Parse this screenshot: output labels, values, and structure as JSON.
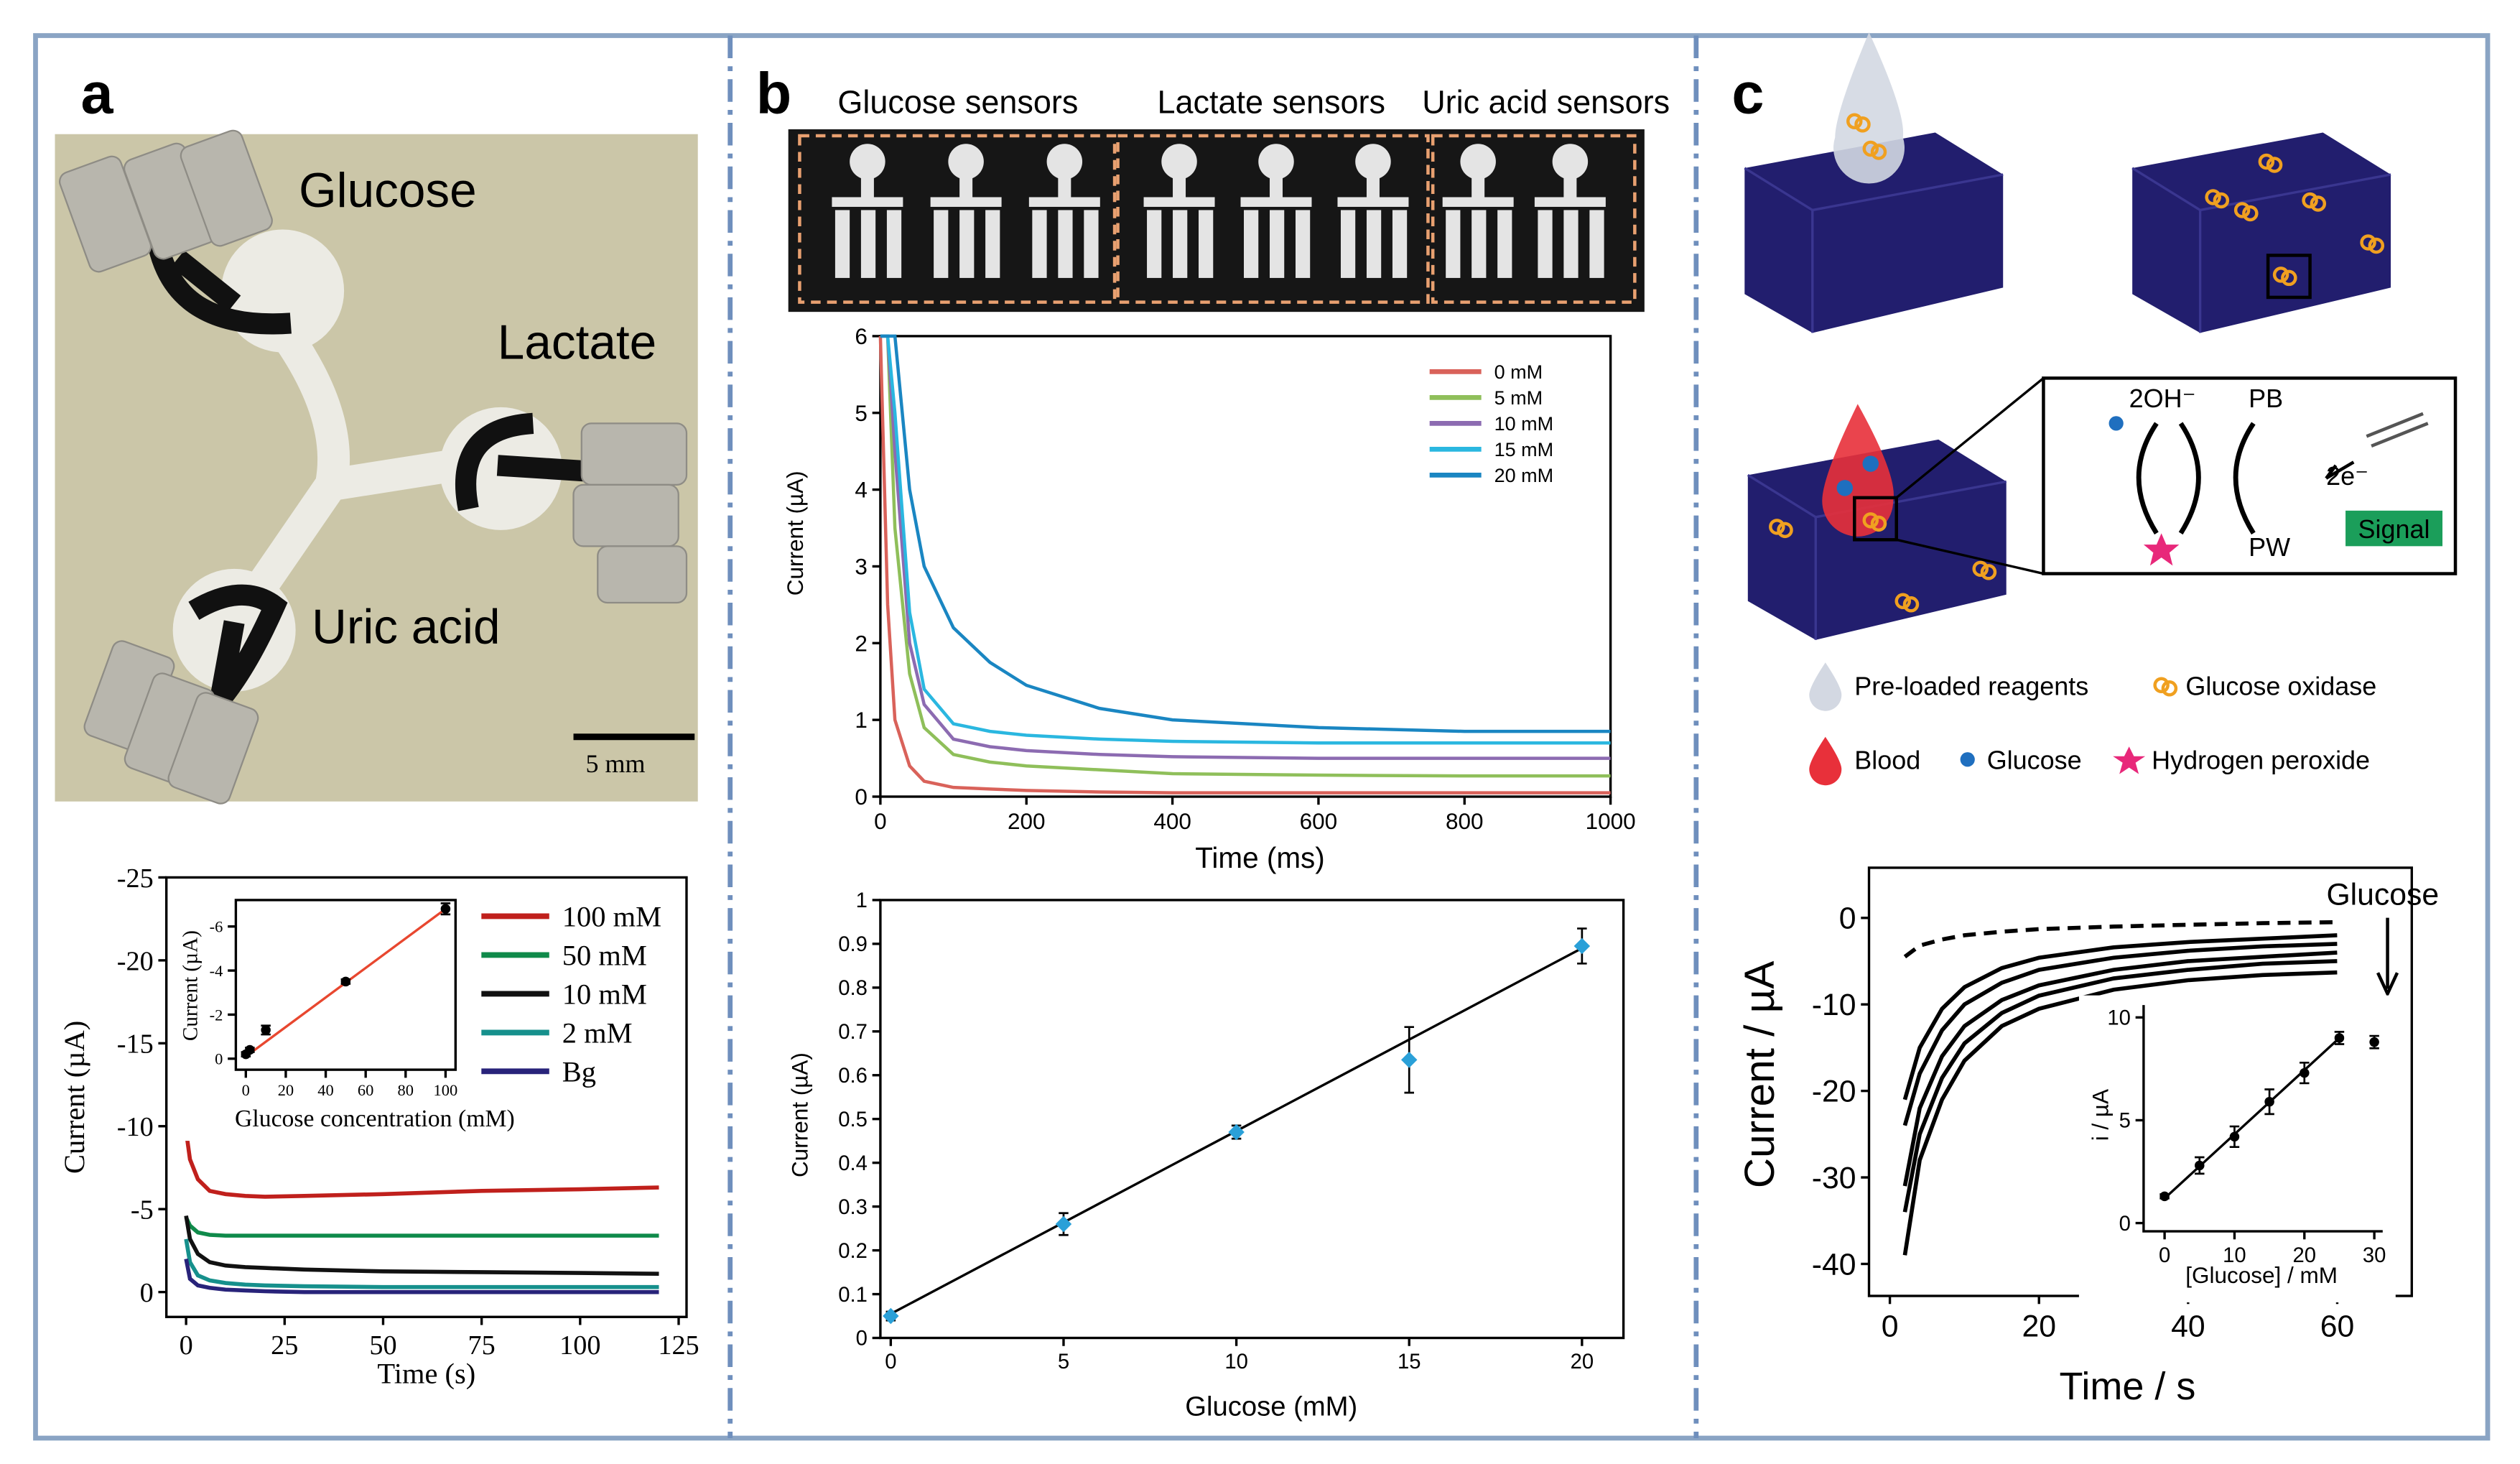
{
  "panel_labels": [
    "a",
    "b",
    "c"
  ],
  "photo_a": {
    "labels": [
      "Glucose",
      "Lactate",
      "Uric acid"
    ],
    "scale_bar": "5 mm"
  },
  "sensor_strip": {
    "labels": [
      "Glucose sensors",
      "Lactate sensors",
      "Uric acid sensors"
    ]
  },
  "diagram_c": {
    "cycle": [
      "2OH⁻",
      "PB",
      "2e⁻",
      "PW"
    ],
    "signal": "Signal",
    "legend": [
      "Pre-loaded reagents",
      "Glucose oxidase",
      "Blood",
      "Glucose",
      "Hydrogen peroxide"
    ]
  },
  "chart_data": [
    {
      "type": "line",
      "x_label": "Time (s)",
      "y_label": "Current (µA)",
      "xlim": [
        -5,
        127
      ],
      "xticks": [
        0,
        25,
        50,
        75,
        100,
        125
      ],
      "ylim": [
        1.5,
        -25
      ],
      "yticks": [
        0,
        -5,
        -10,
        -15,
        -20,
        -25
      ],
      "x": [
        0,
        1,
        3,
        6,
        10,
        15,
        20,
        30,
        50,
        75,
        100,
        120
      ],
      "series": [
        {
          "name": "100 mM",
          "color": "#c0201c",
          "values": [
            -9.7,
            -8,
            -6.8,
            -6.1,
            -5.9,
            -5.8,
            -5.75,
            -5.8,
            -5.9,
            -6.1,
            -6.2,
            -6.3
          ]
        },
        {
          "name": "50 mM",
          "color": "#0f8a4a",
          "values": [
            -4.5,
            -4,
            -3.6,
            -3.45,
            -3.4,
            -3.4,
            -3.4,
            -3.4,
            -3.4,
            -3.4,
            -3.4,
            -3.4
          ]
        },
        {
          "name": "10 mM",
          "color": "#111111",
          "values": [
            -4.6,
            -3.2,
            -2.3,
            -1.8,
            -1.6,
            -1.5,
            -1.45,
            -1.35,
            -1.25,
            -1.2,
            -1.15,
            -1.1
          ]
        },
        {
          "name": "2 mM",
          "color": "#16908c",
          "values": [
            -3.2,
            -1.8,
            -1,
            -0.7,
            -0.55,
            -0.45,
            -0.4,
            -0.35,
            -0.3,
            -0.3,
            -0.3,
            -0.3
          ]
        },
        {
          "name": "Bg",
          "color": "#28237a",
          "values": [
            -2,
            -0.8,
            -0.4,
            -0.25,
            -0.15,
            -0.1,
            -0.05,
            0,
            0,
            0,
            0,
            0
          ]
        }
      ]
    },
    {
      "type": "scatter",
      "x_label": "Glucose concentration (mM)",
      "y_label": "Current (µA)",
      "xlim": [
        -5,
        105
      ],
      "xticks": [
        0,
        20,
        40,
        60,
        80,
        100
      ],
      "ylim": [
        0.5,
        -7.2
      ],
      "yticks": [
        0,
        -2,
        -4,
        -6
      ],
      "x": [
        0,
        2,
        10,
        50,
        100
      ],
      "values": [
        -0.2,
        -0.4,
        -1.3,
        -3.5,
        -6.8
      ],
      "errors": [
        0.1,
        0.1,
        0.2,
        0.1,
        0.25
      ],
      "color": "#000000",
      "marker": "circle",
      "fit": {
        "x": [
          0,
          100
        ],
        "values": [
          -0.1,
          -6.8
        ],
        "color": "#e8472f"
      }
    },
    {
      "type": "line",
      "x_label": "Time (ms)",
      "y_label": "Current (µA)",
      "xlim": [
        0,
        1000
      ],
      "xticks": [
        0,
        200,
        400,
        600,
        800,
        1000
      ],
      "ylim": [
        0,
        6
      ],
      "yticks": [
        0,
        1,
        2,
        3,
        4,
        5,
        6
      ],
      "x": [
        0,
        10,
        20,
        40,
        60,
        100,
        150,
        200,
        300,
        400,
        600,
        800,
        1000
      ],
      "series": [
        {
          "name": "0 mM",
          "color": "#d9625a",
          "values": [
            6,
            2.5,
            1,
            0.4,
            0.2,
            0.12,
            0.1,
            0.08,
            0.06,
            0.05,
            0.05,
            0.05,
            0.05
          ]
        },
        {
          "name": "5 mM",
          "color": "#8fbf5a",
          "values": [
            6,
            6,
            3.5,
            1.6,
            0.9,
            0.55,
            0.45,
            0.4,
            0.35,
            0.3,
            0.28,
            0.27,
            0.27
          ]
        },
        {
          "name": "10 mM",
          "color": "#8c6bb1",
          "values": [
            6,
            6,
            4.5,
            2,
            1.2,
            0.75,
            0.65,
            0.6,
            0.55,
            0.52,
            0.5,
            0.5,
            0.5
          ]
        },
        {
          "name": "15 mM",
          "color": "#2ab7e0",
          "values": [
            6,
            6,
            5,
            2.4,
            1.4,
            0.95,
            0.85,
            0.8,
            0.75,
            0.72,
            0.7,
            0.7,
            0.7
          ]
        },
        {
          "name": "20 mM",
          "color": "#1a86c2",
          "values": [
            6,
            6,
            6,
            4,
            3,
            2.2,
            1.75,
            1.45,
            1.15,
            1,
            0.9,
            0.85,
            0.85
          ]
        }
      ]
    },
    {
      "type": "scatter",
      "x_label": "Glucose (mM)",
      "y_label": "Current (µA)",
      "xlim": [
        -0.3,
        21.2
      ],
      "xticks": [
        0,
        5,
        10,
        15,
        20
      ],
      "ylim": [
        0,
        1
      ],
      "yticks": [
        0,
        0.1,
        0.2,
        0.3,
        0.4,
        0.5,
        0.6,
        0.7,
        0.8,
        0.9,
        1
      ],
      "x": [
        0,
        5,
        10,
        15,
        20
      ],
      "values": [
        0.05,
        0.26,
        0.47,
        0.635,
        0.895
      ],
      "errors": [
        0.01,
        0.025,
        0.015,
        0.075,
        0.04
      ],
      "color": "#2aa0d8",
      "marker": "diamond",
      "fit": {
        "x": [
          0,
          20
        ],
        "values": [
          0.055,
          0.89
        ],
        "color": "#000000"
      }
    },
    {
      "type": "line",
      "x_label": "Time / s",
      "y_label": "Current / µA",
      "annotation": "Glucose",
      "xlim": [
        -2.8,
        70
      ],
      "xticks": [
        0,
        20,
        40,
        60
      ],
      "ylim": [
        -43.7,
        5.8
      ],
      "yticks": [
        0,
        -10,
        -20,
        -30,
        -40
      ],
      "x": [
        2,
        4,
        7,
        10,
        15,
        20,
        30,
        40,
        50,
        60
      ],
      "series": [
        {
          "color": "#000000",
          "line_style": "dashed",
          "values": [
            -4.5,
            -3.2,
            -2.5,
            -2,
            -1.6,
            -1.3,
            -1,
            -0.8,
            -0.6,
            -0.5
          ]
        },
        {
          "color": "#000000",
          "values": [
            -21,
            -15,
            -10.5,
            -8,
            -5.8,
            -4.6,
            -3.4,
            -2.8,
            -2.4,
            -2
          ]
        },
        {
          "color": "#000000",
          "values": [
            -24,
            -18,
            -13,
            -10,
            -7.5,
            -6,
            -4.6,
            -3.8,
            -3.3,
            -3
          ]
        },
        {
          "color": "#000000",
          "values": [
            -31,
            -22,
            -16,
            -12.5,
            -9.5,
            -7.8,
            -6,
            -5,
            -4.5,
            -4
          ]
        },
        {
          "color": "#000000",
          "values": [
            -34,
            -25,
            -18.5,
            -14.5,
            -11,
            -9,
            -7,
            -6,
            -5.3,
            -5
          ]
        },
        {
          "color": "#000000",
          "values": [
            -39,
            -28,
            -21,
            -16.5,
            -12.5,
            -10.5,
            -8.3,
            -7.2,
            -6.6,
            -6.3
          ]
        }
      ]
    },
    {
      "type": "scatter",
      "x_label": "[Glucose] / mM",
      "y_label": "i / µA",
      "xlim": [
        -3,
        31.2
      ],
      "xticks": [
        0,
        10,
        20,
        30
      ],
      "ylim": [
        -0.4,
        10.6
      ],
      "yticks": [
        0,
        5,
        10
      ],
      "x": [
        0,
        5,
        10,
        15,
        20,
        25,
        30
      ],
      "values": [
        1.3,
        2.8,
        4.2,
        5.9,
        7.3,
        9,
        8.8
      ],
      "errors": [
        0.1,
        0.4,
        0.5,
        0.6,
        0.5,
        0.3,
        0.3
      ],
      "color": "#000000",
      "marker": "circle",
      "fit": {
        "x": [
          0,
          25
        ],
        "values": [
          1.2,
          9
        ],
        "color": "#000000"
      }
    }
  ]
}
